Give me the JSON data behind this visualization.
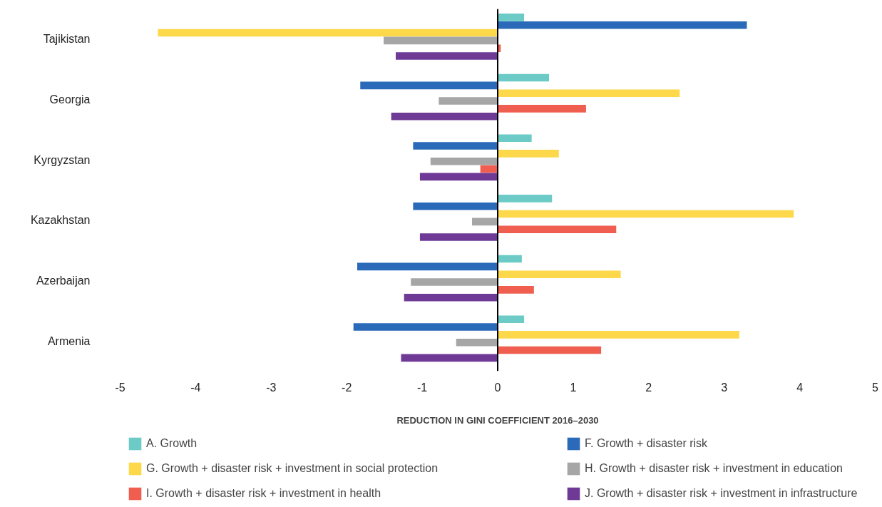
{
  "chart_data": {
    "type": "bar",
    "orientation": "horizontal",
    "xlabel": "REDUCTION IN GINI COEFFICIENT 2016–2030",
    "categories": [
      "Tajikistan",
      "Georgia",
      "Kyrgyzstan",
      "Kazakhstan",
      "Azerbaijan",
      "Armenia"
    ],
    "series": [
      {
        "name": "A. Growth",
        "color": "#6ccbc6",
        "values": [
          0.35,
          0.68,
          0.45,
          0.72,
          0.32,
          0.35
        ]
      },
      {
        "name": "F. Growth + disaster risk",
        "color": "#2a6ab8",
        "values": [
          3.3,
          -1.82,
          -1.12,
          -1.12,
          -1.86,
          -1.91
        ]
      },
      {
        "name": "G. Growth + disaster risk + investment in social protection",
        "color": "#fdd84a",
        "values": [
          -4.5,
          2.41,
          0.81,
          3.92,
          1.63,
          3.2
        ]
      },
      {
        "name": "H. Growth + disaster risk + investment in education",
        "color": "#a6a6a6",
        "values": [
          -1.51,
          -0.78,
          -0.89,
          -0.34,
          -1.15,
          -0.55
        ]
      },
      {
        "name": "I. Growth + disaster risk + investment in health",
        "color": "#ef5e4e",
        "values": [
          0.04,
          1.17,
          -0.23,
          1.57,
          0.48,
          1.37
        ]
      },
      {
        "name": "J. Growth + disaster risk + investment in infrastructure",
        "color": "#6f3a96",
        "values": [
          -1.35,
          -1.41,
          -1.03,
          -1.03,
          -1.24,
          -1.28
        ]
      }
    ],
    "xlim": [
      -5,
      5
    ],
    "xticks": [
      -5,
      -4,
      -3,
      -2,
      -1,
      0,
      1,
      2,
      3,
      4,
      5
    ],
    "ref_lines": [
      {
        "axis": "x",
        "value": 0,
        "color": "#000000"
      }
    ],
    "grid": false,
    "legend": "bottom"
  }
}
